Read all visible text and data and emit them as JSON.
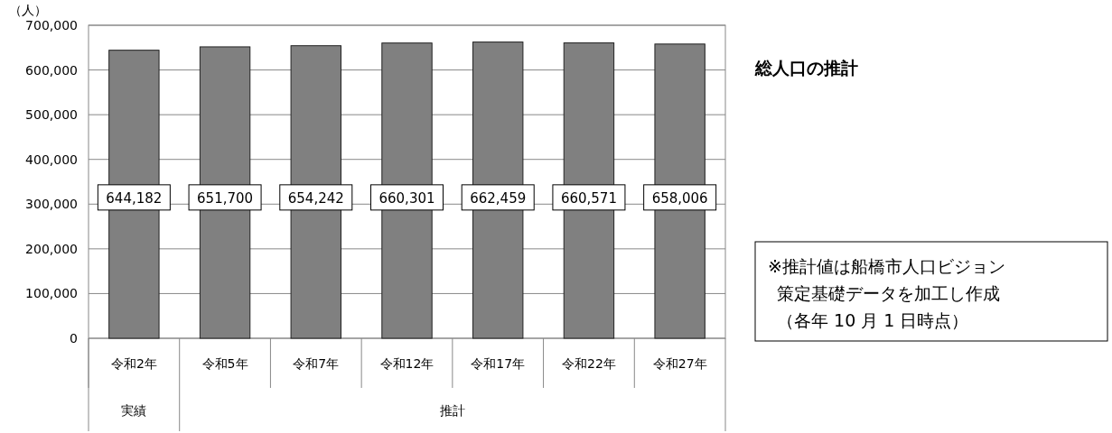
{
  "chart_data": {
    "type": "bar",
    "title": "総人口の推計",
    "ylabel": "（人）",
    "categories": [
      "令和2年",
      "令和5年",
      "令和7年",
      "令和12年",
      "令和17年",
      "令和22年",
      "令和27年"
    ],
    "values": [
      644182,
      651700,
      654242,
      660301,
      662459,
      660571,
      658006
    ],
    "color": "#808080",
    "value_labels": [
      "644,182",
      "651,700",
      "654,242",
      "660,301",
      "662,459",
      "660,571",
      "658,006"
    ],
    "ylim": [
      0,
      700000
    ],
    "yticks": [
      {
        "value": 0,
        "label": "0"
      },
      {
        "value": 100000,
        "label": "100,000"
      },
      {
        "value": 200000,
        "label": "200,000"
      },
      {
        "value": 300000,
        "label": "300,000"
      },
      {
        "value": 400000,
        "label": "400,000"
      },
      {
        "value": 500000,
        "label": "500,000"
      },
      {
        "value": 600000,
        "label": "600,000"
      },
      {
        "value": 700000,
        "label": "700,000"
      }
    ],
    "grid": "y",
    "annotations": [
      "実績",
      "推計",
      "※推計値は船橋市人口ビジョン",
      "策定基礎データを加工し作成",
      "（各年 10 月 1 日時点）"
    ]
  }
}
